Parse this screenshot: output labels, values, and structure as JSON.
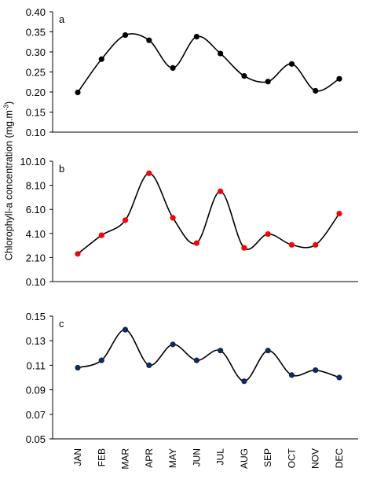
{
  "figure": {
    "ylabel_main": "Chlorophyll-a concentration (mg.m",
    "ylabel_sup": "-3",
    "ylabel_end": ")"
  },
  "chart_data": [
    {
      "type": "line",
      "panel_label": "a",
      "categories": [
        "JAN",
        "FEB",
        "MAR",
        "APR",
        "MAY",
        "JUN",
        "JUL",
        "AUG",
        "SEP",
        "OCT",
        "NOV",
        "DEC"
      ],
      "values": [
        0.199,
        0.282,
        0.342,
        0.329,
        0.26,
        0.338,
        0.296,
        0.24,
        0.226,
        0.27,
        0.203,
        0.233
      ],
      "ylim": [
        0.1,
        0.4
      ],
      "yticks": [
        "0.10",
        "0.15",
        "0.20",
        "0.25",
        "0.30",
        "0.35",
        "0.40"
      ],
      "marker_color": "#000000",
      "line_color": "#000000",
      "smooth": true
    },
    {
      "type": "line",
      "panel_label": "b",
      "categories": [
        "JAN",
        "FEB",
        "MAR",
        "APR",
        "MAY",
        "JUN",
        "JUL",
        "AUG",
        "SEP",
        "OCT",
        "NOV",
        "DEC"
      ],
      "values": [
        2.4,
        3.95,
        5.2,
        9.1,
        5.4,
        3.3,
        7.6,
        2.9,
        4.05,
        3.15,
        3.15,
        5.75
      ],
      "ylim": [
        0.1,
        10.1
      ],
      "yticks": [
        "0.10",
        "2.10",
        "4.10",
        "6.10",
        "8.10",
        "10.10"
      ],
      "marker_color": "#ff0000",
      "line_color": "#000000",
      "smooth": true
    },
    {
      "type": "line",
      "panel_label": "c",
      "categories": [
        "JAN",
        "FEB",
        "MAR",
        "APR",
        "MAY",
        "JUN",
        "JUL",
        "AUG",
        "SEP",
        "OCT",
        "NOV",
        "DEC"
      ],
      "values": [
        0.108,
        0.114,
        0.139,
        0.11,
        0.127,
        0.114,
        0.122,
        0.097,
        0.122,
        0.102,
        0.106,
        0.1
      ],
      "ylim": [
        0.05,
        0.15
      ],
      "yticks": [
        "0.05",
        "0.07",
        "0.09",
        "0.11",
        "0.13",
        "0.15"
      ],
      "marker_color": "#0d2b5e",
      "line_color": "#000000",
      "smooth": true
    }
  ]
}
